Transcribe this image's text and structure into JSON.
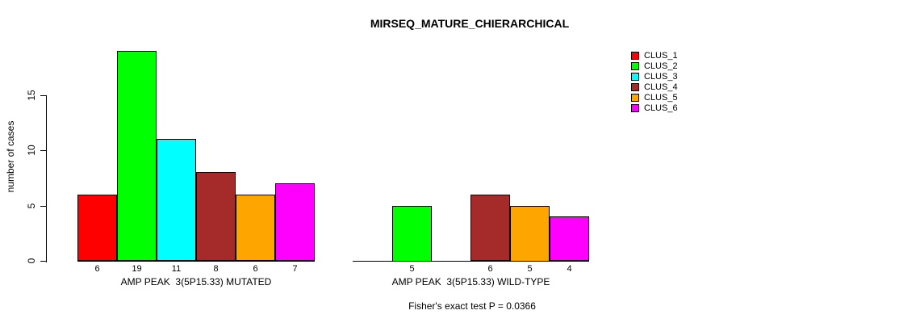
{
  "title": "MIRSEQ_MATURE_CHIERARCHICAL",
  "y_axis": {
    "label": "number of cases",
    "ticks": [
      "0",
      "5",
      "10",
      "15"
    ]
  },
  "legend": {
    "items": [
      {
        "label": "CLUS_1",
        "color": "#FF0000"
      },
      {
        "label": "CLUS_2",
        "color": "#00FF00"
      },
      {
        "label": "CLUS_3",
        "color": "#00FFFF"
      },
      {
        "label": "CLUS_4",
        "color": "#A52A2A"
      },
      {
        "label": "CLUS_5",
        "color": "#FFA500"
      },
      {
        "label": "CLUS_6",
        "color": "#FF00FF"
      }
    ]
  },
  "footer": "Fisher's exact test P = 0.0366",
  "chart_data": {
    "type": "bar",
    "title": "MIRSEQ_MATURE_CHIERARCHICAL",
    "xlabel": "",
    "ylabel": "number of cases",
    "ylim": [
      0,
      19
    ],
    "yticks": [
      0,
      5,
      10,
      15
    ],
    "grid": false,
    "legend_position": "top-right",
    "bar_value_labels": "shown below each nonzero bar",
    "categories": [
      "AMP PEAK  3(5P15.33) MUTATED",
      "AMP PEAK  3(5P15.33) WILD-TYPE"
    ],
    "series": [
      {
        "name": "CLUS_1",
        "color": "#FF0000",
        "values": [
          6,
          0
        ]
      },
      {
        "name": "CLUS_2",
        "color": "#00FF00",
        "values": [
          19,
          5
        ]
      },
      {
        "name": "CLUS_3",
        "color": "#00FFFF",
        "values": [
          11,
          0
        ]
      },
      {
        "name": "CLUS_4",
        "color": "#A52A2A",
        "values": [
          8,
          6
        ]
      },
      {
        "name": "CLUS_5",
        "color": "#FFA500",
        "values": [
          6,
          5
        ]
      },
      {
        "name": "CLUS_6",
        "color": "#FF00FF",
        "values": [
          7,
          4
        ]
      }
    ],
    "annotation": "Fisher's exact test P = 0.0366"
  }
}
